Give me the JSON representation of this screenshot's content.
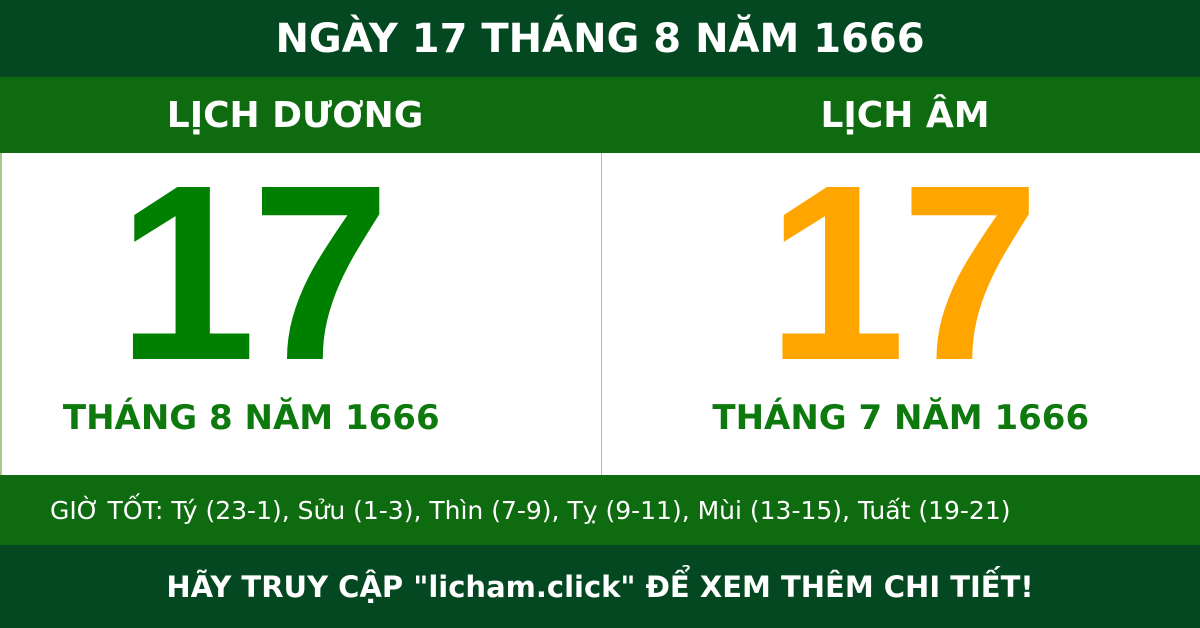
{
  "title": "NGÀY 17 THÁNG 8 NĂM 1666",
  "solar": {
    "heading": "LỊCH DƯƠNG",
    "day": "17",
    "month_year": "THÁNG 8 NĂM 1666"
  },
  "lunar": {
    "heading": "LỊCH ÂM",
    "day": "17",
    "month_year": "THÁNG 7 NĂM 1666"
  },
  "good_hours": "GIỜ TỐT: Tý (23-1), Sửu (1-3), Thìn (7-9), Tỵ (9-11), Mùi (13-15), Tuất (19-21)",
  "footer": "HÃY TRUY CẬP \"licham.click\" ĐỂ XEM THÊM CHI TIẾT!",
  "colors": {
    "dark_green": "#034821",
    "green": "#0f6b10",
    "solar_day": "#008000",
    "lunar_day": "#ffa500"
  }
}
